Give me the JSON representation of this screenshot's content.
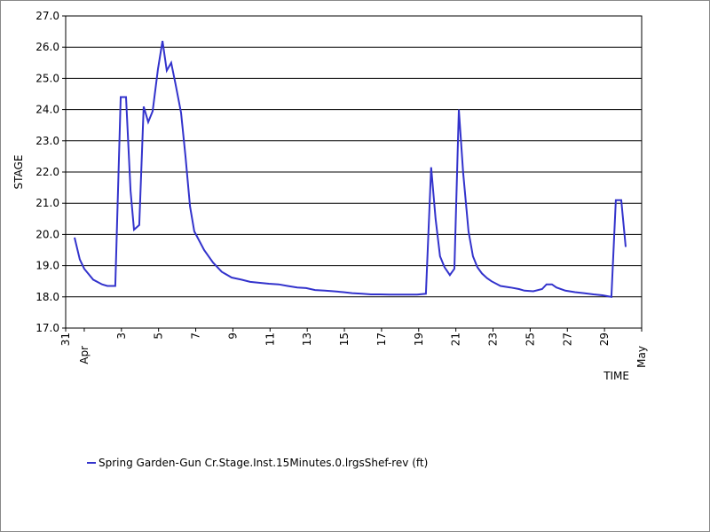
{
  "chart_data": {
    "type": "line",
    "ylabel": "STAGE",
    "xlabel": "TIME",
    "xlim": [
      0,
      31
    ],
    "xticks": [
      {
        "value": 0,
        "label": "31"
      },
      {
        "value": 1,
        "label": "Apr"
      },
      3,
      5,
      7,
      9,
      11,
      13,
      15,
      17,
      19,
      21,
      23,
      25,
      27,
      29,
      {
        "value": 31,
        "label": "May"
      }
    ],
    "ylim": [
      17,
      27
    ],
    "yticks": [
      {
        "value": 17,
        "label": "17.0"
      },
      {
        "value": 18,
        "label": "18.0"
      },
      {
        "value": 19,
        "label": "19.0"
      },
      {
        "value": 20,
        "label": "20.0"
      },
      {
        "value": 21,
        "label": "21.0"
      },
      {
        "value": 22,
        "label": "22.0"
      },
      {
        "value": 23,
        "label": "23.0"
      },
      {
        "value": 24,
        "label": "24.0"
      },
      {
        "value": 25,
        "label": "25.0"
      },
      {
        "value": 26,
        "label": "26.0"
      },
      {
        "value": 27,
        "label": "27.0"
      }
    ],
    "grid": true,
    "x": [
      0.48,
      0.76,
      1.0,
      1.48,
      1.96,
      2.24,
      2.67,
      2.96,
      3.25,
      3.49,
      3.68,
      3.96,
      4.2,
      4.44,
      4.68,
      4.97,
      5.21,
      5.44,
      5.68,
      5.92,
      6.21,
      6.45,
      6.69,
      6.92,
      7.45,
      7.93,
      8.4,
      8.93,
      9.46,
      9.93,
      10.46,
      10.94,
      11.46,
      11.94,
      12.46,
      12.94,
      13.42,
      13.95,
      14.42,
      14.95,
      15.42,
      15.95,
      16.43,
      16.9,
      17.43,
      17.91,
      18.43,
      18.91,
      19.39,
      19.67,
      19.91,
      20.15,
      20.39,
      20.68,
      20.92,
      21.16,
      21.39,
      21.68,
      21.92,
      22.16,
      22.4,
      22.68,
      22.92,
      23.4,
      23.93,
      24.4,
      24.69,
      25.17,
      25.64,
      25.88,
      26.17,
      26.41,
      26.89,
      27.41,
      27.89,
      28.41,
      28.89,
      29.37,
      29.61,
      29.9,
      30.14
    ],
    "series": [
      {
        "name": "Spring Garden-Gun Cr.Stage.Inst.15Minutes.0.lrgsShef-rev (ft)",
        "color": "#3333cc",
        "values": [
          19.9,
          19.2,
          18.9,
          18.55,
          18.4,
          18.35,
          18.35,
          24.4,
          24.4,
          21.4,
          20.15,
          20.3,
          24.1,
          23.6,
          23.95,
          25.3,
          26.2,
          25.25,
          25.5,
          24.8,
          23.9,
          22.5,
          20.9,
          20.1,
          19.5,
          19.1,
          18.8,
          18.62,
          18.55,
          18.48,
          18.45,
          18.42,
          18.4,
          18.35,
          18.3,
          18.28,
          18.22,
          18.2,
          18.18,
          18.15,
          18.12,
          18.1,
          18.08,
          18.08,
          18.07,
          18.07,
          18.07,
          18.07,
          18.1,
          22.15,
          20.5,
          19.3,
          18.95,
          18.7,
          18.9,
          24.0,
          22.0,
          20.1,
          19.3,
          18.95,
          18.75,
          18.6,
          18.5,
          18.35,
          18.3,
          18.25,
          18.2,
          18.18,
          18.25,
          18.4,
          18.4,
          18.3,
          18.2,
          18.15,
          18.12,
          18.08,
          18.05,
          18.0,
          21.1,
          21.1,
          19.6
        ]
      }
    ]
  }
}
